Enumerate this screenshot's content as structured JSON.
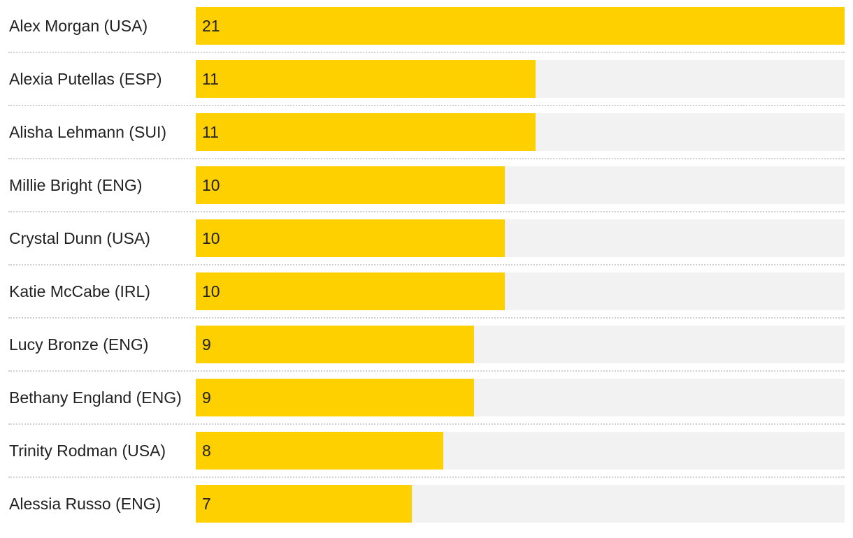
{
  "chart_data": {
    "type": "bar",
    "orientation": "horizontal",
    "title": "",
    "xlabel": "",
    "ylabel": "",
    "categories": [
      "Alex Morgan (USA)",
      "Alexia Putellas (ESP)",
      "Alisha Lehmann (SUI)",
      "Millie Bright (ENG)",
      "Crystal Dunn (USA)",
      "Katie McCabe (IRL)",
      "Lucy Bronze (ENG)",
      "Bethany England (ENG)",
      "Trinity Rodman (USA)",
      "Alessia Russo (ENG)"
    ],
    "values": [
      21,
      11,
      11,
      10,
      10,
      10,
      9,
      9,
      8,
      7
    ],
    "xlim": [
      0,
      21
    ],
    "grid": false,
    "legend": "none",
    "colors": {
      "bar": "#fed000",
      "track": "#f2f2f2",
      "divider": "#cfcfcf",
      "text": "#222222"
    }
  }
}
